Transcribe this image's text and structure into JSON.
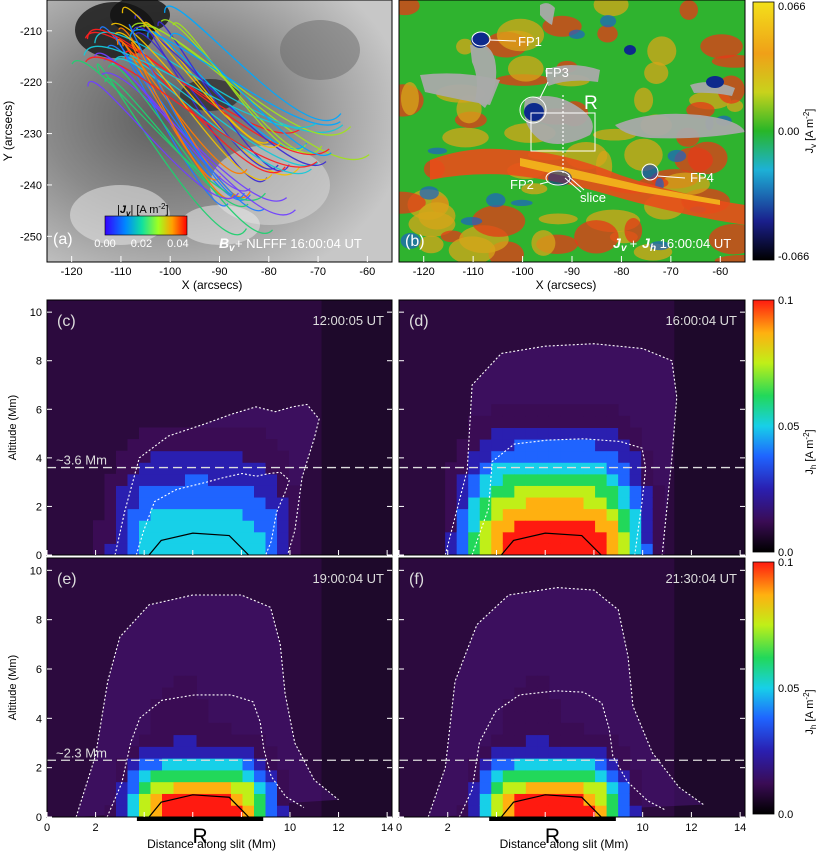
{
  "chart_data": [
    {
      "type": "heatmap",
      "panel": "(a)",
      "caption_bold": "B",
      "caption_sub": "v",
      "caption_rest": " + NLFFF 16:00:04 UT",
      "xlabel": "X (arcsecs)",
      "ylabel": "Y (arcsecs)",
      "xlim": [
        -125,
        -55
      ],
      "ylim": [
        -255,
        -204
      ],
      "x_ticks": [
        -120,
        -110,
        -100,
        -90,
        -80,
        -70,
        -60
      ],
      "y_ticks": [
        -210,
        -220,
        -230,
        -240,
        -250
      ],
      "colorbar": {
        "label": "|J_v| [A m^-2]",
        "ticks": [
          0.0,
          0.02,
          0.04
        ],
        "tick_labels": [
          "0.00",
          "0.02",
          "0.04"
        ]
      },
      "fieldlines_left": {
        "footpoints": [
          [
            -107,
            -208
          ],
          [
            -110,
            -212
          ],
          [
            -113,
            -214
          ],
          [
            -115,
            -218
          ],
          [
            -104,
            -209
          ]
        ],
        "num_lines": 40
      },
      "fieldlines_right": {
        "footpoints": [
          [
            -75,
            -236
          ],
          [
            -85,
            -241
          ],
          [
            -70,
            -233
          ],
          [
            -80,
            -244
          ],
          [
            -66,
            -231
          ]
        ]
      }
    },
    {
      "type": "heatmap",
      "panel": "(b)",
      "caption": "J_v + J_h 16:00:04 UT",
      "caption_j1": "J",
      "caption_s1": "v",
      "caption_plus": " + ",
      "caption_j2": "J",
      "caption_s2": "h",
      "caption_time": " 16:00:04 UT",
      "xlabel": "X (arcsecs)",
      "xlim": [
        -125,
        -55
      ],
      "x_ticks": [
        -120,
        -110,
        -100,
        -90,
        -80,
        -70,
        -60
      ],
      "colorbar": {
        "label": "J_v [A m^-2]",
        "min": -0.066,
        "max": 0.066,
        "tick_labels": [
          "0.066",
          "0.00",
          "-0.066"
        ]
      },
      "annotations": [
        {
          "label": "FP1",
          "x": -108,
          "y": -210
        },
        {
          "label": "FP2",
          "x": -93,
          "y": -233
        },
        {
          "label": "FP3",
          "x": -96,
          "y": -224
        },
        {
          "label": "FP4",
          "x": -75,
          "y": -236
        },
        {
          "label": "R",
          "x": -91,
          "y": -227
        },
        {
          "label": "slice",
          "x": -92,
          "y": -238
        }
      ]
    },
    {
      "type": "heatmap",
      "panel": "(c)",
      "time": "12:00:05 UT",
      "xlabel": "",
      "ylabel": "Altitude (Mm)",
      "xlim": [
        0,
        14.2
      ],
      "ylim": [
        0,
        10.5
      ],
      "reference_line": {
        "label": "~3.6 Mm",
        "y": 3.6
      },
      "peak_Jh": 0.055,
      "contour_top": [
        [
          2.8,
          0
        ],
        [
          3.2,
          1.8
        ],
        [
          3.8,
          4.0
        ],
        [
          5.0,
          4.9
        ],
        [
          6.5,
          5.4
        ],
        [
          7.6,
          5.8
        ],
        [
          8.6,
          6.1
        ],
        [
          9.4,
          5.9
        ],
        [
          10.1,
          6.1
        ],
        [
          10.7,
          6.2
        ],
        [
          11.2,
          5.6
        ],
        [
          11.0,
          4.8
        ],
        [
          10.5,
          3.2
        ],
        [
          10.2,
          1.0
        ],
        [
          9.9,
          0
        ]
      ]
    },
    {
      "type": "heatmap",
      "panel": "(d)",
      "time": "16:00:04 UT",
      "xlabel": "",
      "xlim": [
        0,
        14.2
      ],
      "ylim": [
        0,
        10.5
      ],
      "reference_line": {
        "y": 3.6
      },
      "peak_Jh": 0.1,
      "contour_top": [
        [
          1.9,
          0
        ],
        [
          2.8,
          3.5
        ],
        [
          3.0,
          7.0
        ],
        [
          4.2,
          8.3
        ],
        [
          6.0,
          8.6
        ],
        [
          8.0,
          8.7
        ],
        [
          10.0,
          8.5
        ],
        [
          11.2,
          8.0
        ],
        [
          11.4,
          6.5
        ],
        [
          11.2,
          4.0
        ],
        [
          11.0,
          2.0
        ],
        [
          10.8,
          0
        ]
      ]
    },
    {
      "type": "heatmap",
      "panel": "(e)",
      "time": "19:00:04 UT",
      "xlabel": "Distance along slit (Mm)",
      "ylabel": "Altitude (Mm)",
      "xlim": [
        0,
        14.2
      ],
      "ylim": [
        0,
        10.5
      ],
      "reference_line": {
        "label": "~2.3 Mm",
        "y": 2.3
      },
      "peak_Jh": 0.1,
      "region_label": "R",
      "region_x": [
        3.7,
        8.9
      ],
      "contour_top": [
        [
          1.2,
          0
        ],
        [
          2.0,
          2.5
        ],
        [
          2.5,
          5.5
        ],
        [
          3.0,
          7.3
        ],
        [
          4.2,
          8.6
        ],
        [
          6.0,
          9.0
        ],
        [
          8.0,
          9.0
        ],
        [
          9.2,
          8.5
        ],
        [
          9.6,
          7.0
        ],
        [
          9.8,
          5.0
        ],
        [
          10.2,
          3.0
        ],
        [
          11.0,
          1.5
        ],
        [
          12.0,
          0.7
        ]
      ]
    },
    {
      "type": "heatmap",
      "panel": "(f)",
      "time": "21:30:04 UT",
      "xlabel": "Distance along slit (Mm)",
      "xlim": [
        0,
        14.2
      ],
      "ylim": [
        0,
        10.5
      ],
      "reference_line": {
        "y": 2.3
      },
      "peak_Jh": 0.1,
      "region_label": "R",
      "region_x": [
        3.7,
        8.9
      ],
      "contour_top": [
        [
          1.2,
          0
        ],
        [
          1.9,
          2.0
        ],
        [
          2.3,
          5.5
        ],
        [
          3.2,
          7.8
        ],
        [
          4.5,
          9.0
        ],
        [
          6.5,
          9.3
        ],
        [
          8.0,
          9.2
        ],
        [
          9.0,
          8.4
        ],
        [
          9.4,
          6.5
        ],
        [
          9.6,
          4.5
        ],
        [
          10.4,
          2.6
        ],
        [
          11.5,
          1.2
        ],
        [
          12.5,
          0.5
        ]
      ]
    }
  ],
  "axes_common": {
    "x_ticks": [
      0,
      2,
      4,
      6,
      8,
      10,
      12,
      14
    ],
    "x_tick_labels": [
      "0",
      "2",
      "",
      "",
      "",
      "10",
      "12",
      "14"
    ],
    "y_ticks": [
      0,
      2,
      4,
      6,
      8,
      10
    ],
    "colorbar_h": {
      "label": "J_h [A m^-2]",
      "tick_labels": [
        "0.1",
        "0.05",
        "0.0"
      ],
      "ticks": [
        0.1,
        0.05,
        0.0
      ]
    }
  }
}
